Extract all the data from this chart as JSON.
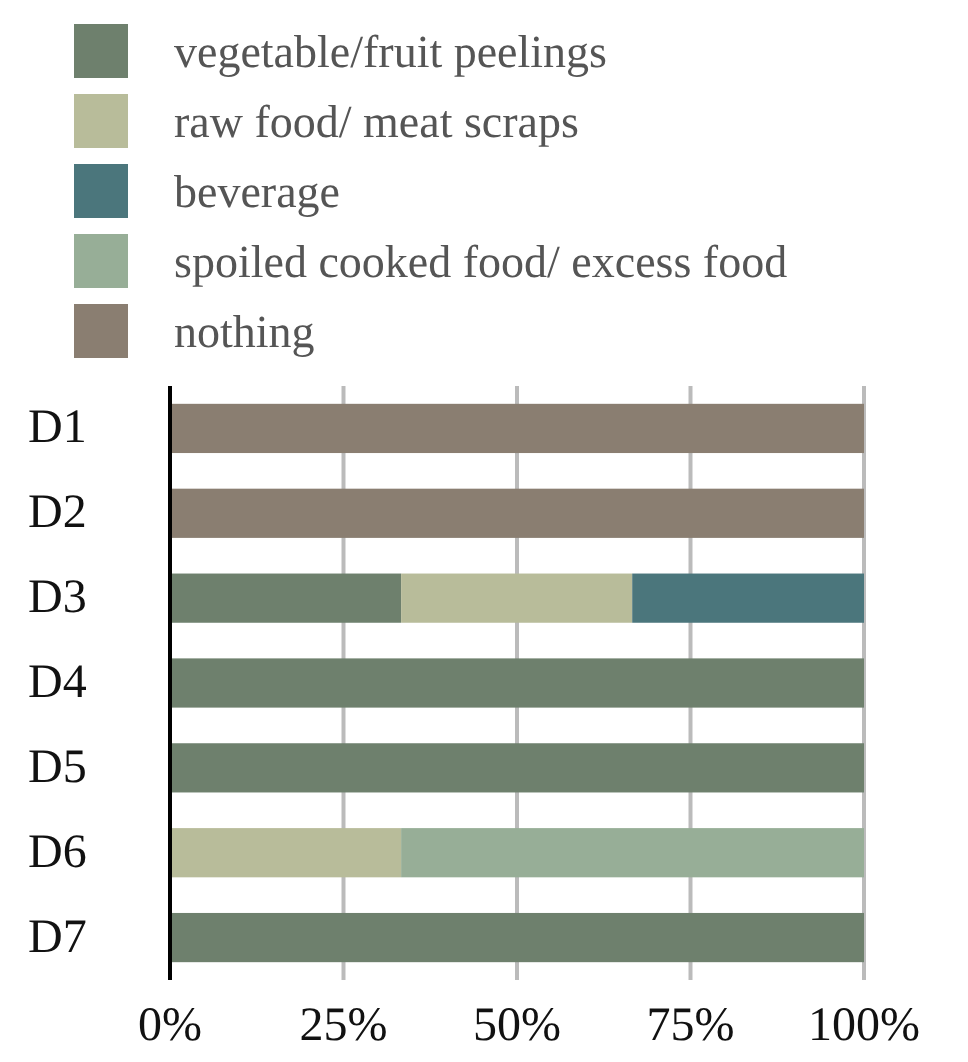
{
  "chart_data": {
    "type": "bar",
    "orientation": "horizontal",
    "stacked": true,
    "categories": [
      "D1",
      "D2",
      "D3",
      "D4",
      "D5",
      "D6",
      "D7"
    ],
    "series": [
      {
        "name": "vegetable/fruit peelings",
        "color": "#6e806d",
        "values": [
          null,
          null,
          33.3,
          100,
          100,
          null,
          100
        ]
      },
      {
        "name": "raw food/ meat scraps",
        "color": "#b8bc9a",
        "values": [
          null,
          null,
          33.3,
          null,
          null,
          33.3,
          null
        ]
      },
      {
        "name": "beverage",
        "color": "#4b767c",
        "values": [
          null,
          null,
          33.4,
          null,
          null,
          null,
          null
        ]
      },
      {
        "name": "spoiled cooked food/ excess food",
        "color": "#97ae97",
        "values": [
          null,
          null,
          null,
          null,
          null,
          66.7,
          null
        ]
      },
      {
        "name": "nothing",
        "color": "#8a7e71",
        "values": [
          100,
          100,
          null,
          null,
          null,
          null,
          null
        ]
      }
    ],
    "xlim": [
      0,
      100
    ],
    "xticks": [
      {
        "value": 0,
        "label": "0%"
      },
      {
        "value": 25,
        "label": "25%"
      },
      {
        "value": 50,
        "label": "50%"
      },
      {
        "value": 75,
        "label": "75%"
      },
      {
        "value": 100,
        "label": "100%"
      }
    ],
    "grid": "x",
    "legend": "top"
  }
}
